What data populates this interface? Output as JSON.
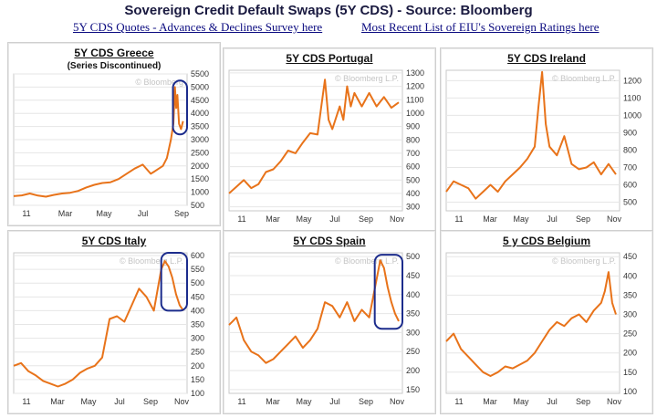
{
  "header": {
    "title": "Sovereign Credit Default Swaps (5Y CDS) - Source: Bloomberg",
    "link_quotes": "5Y CDS Quotes - Advances & Declines Survey here",
    "link_ratings": "Most Recent List of EIU's Sovereign Ratings here"
  },
  "colors": {
    "line": "#e8731a",
    "highlight": "#1c2c8c",
    "grid": "#e6e6e6"
  },
  "chart_data": [
    {
      "type": "line",
      "title": "5Y CDS Greece",
      "subtitle": "(Series Discontinued)",
      "watermark": "© Bloomberg",
      "xticks": [
        "11",
        "Mar",
        "May",
        "Jul",
        "Sep"
      ],
      "yticks": [
        500,
        1000,
        1500,
        2000,
        2500,
        3000,
        3500,
        4000,
        4500,
        5000,
        5500
      ],
      "ylim": [
        500,
        5500
      ],
      "xlim": [
        0,
        43
      ],
      "highlight": [
        39.5,
        43,
        3200,
        5250
      ],
      "series": [
        {
          "x": [
            0,
            2,
            4,
            6,
            8,
            10,
            12,
            14,
            16,
            18,
            20,
            22,
            24,
            26,
            28,
            30,
            32,
            34,
            35,
            36,
            37,
            38,
            39,
            39.6,
            40,
            40.3,
            40.6,
            41,
            41.5,
            42
          ],
          "y": [
            850,
            880,
            950,
            870,
            830,
            900,
            950,
            980,
            1050,
            1180,
            1280,
            1350,
            1380,
            1500,
            1700,
            1900,
            2050,
            1700,
            1800,
            1900,
            2000,
            2300,
            3000,
            3600,
            5000,
            4200,
            4700,
            3600,
            3400,
            3700
          ]
        }
      ]
    },
    {
      "type": "line",
      "title": "5Y CDS Portugal",
      "watermark": "© Bloomberg L.P.",
      "xticks": [
        "11",
        "Mar",
        "May",
        "Jul",
        "Sep",
        "Nov"
      ],
      "yticks": [
        300,
        400,
        500,
        600,
        700,
        800,
        900,
        1000,
        1100,
        1200,
        1300
      ],
      "ylim": [
        270,
        1320
      ],
      "xlim": [
        0,
        47
      ],
      "highlight": null,
      "series": [
        {
          "x": [
            0,
            2,
            4,
            6,
            8,
            10,
            12,
            14,
            16,
            18,
            20,
            22,
            24,
            25,
            26,
            27,
            28,
            30,
            31,
            32,
            33,
            34,
            36,
            38,
            40,
            42,
            44,
            46
          ],
          "y": [
            400,
            450,
            500,
            440,
            470,
            560,
            580,
            640,
            720,
            700,
            780,
            850,
            840,
            1050,
            1250,
            950,
            880,
            1050,
            950,
            1200,
            1050,
            1150,
            1050,
            1150,
            1050,
            1120,
            1040,
            1080
          ]
        }
      ]
    },
    {
      "type": "line",
      "title": "5Y CDS Ireland",
      "watermark": "© Bloomberg L.P.",
      "xticks": [
        "11",
        "Mar",
        "May",
        "Jul",
        "Sep",
        "Nov"
      ],
      "yticks": [
        500,
        600,
        700,
        800,
        900,
        1000,
        1100,
        1200
      ],
      "ylim": [
        450,
        1260
      ],
      "xlim": [
        0,
        47
      ],
      "highlight": null,
      "series": [
        {
          "x": [
            0,
            2,
            4,
            6,
            8,
            10,
            12,
            14,
            16,
            18,
            20,
            22,
            24,
            25,
            26,
            27,
            28,
            30,
            32,
            34,
            36,
            38,
            40,
            42,
            44,
            46
          ],
          "y": [
            560,
            620,
            600,
            580,
            520,
            560,
            600,
            560,
            620,
            660,
            700,
            750,
            820,
            1050,
            1250,
            950,
            820,
            770,
            880,
            720,
            690,
            700,
            730,
            660,
            720,
            660
          ]
        }
      ]
    },
    {
      "type": "line",
      "title": "5Y CDS Italy",
      "watermark": "© Bloomberg L.P.",
      "xticks": [
        "11",
        "Mar",
        "May",
        "Jul",
        "Sep",
        "Nov"
      ],
      "yticks": [
        100,
        150,
        200,
        250,
        300,
        350,
        400,
        450,
        500,
        550,
        600
      ],
      "ylim": [
        100,
        610
      ],
      "xlim": [
        0,
        47
      ],
      "highlight": [
        40,
        47,
        400,
        610
      ],
      "series": [
        {
          "x": [
            0,
            2,
            4,
            6,
            8,
            10,
            12,
            14,
            16,
            18,
            20,
            22,
            24,
            26,
            28,
            30,
            32,
            34,
            36,
            38,
            40,
            41,
            42,
            43,
            44,
            45,
            46
          ],
          "y": [
            200,
            210,
            180,
            165,
            145,
            135,
            125,
            135,
            150,
            175,
            190,
            200,
            230,
            370,
            380,
            360,
            420,
            480,
            450,
            400,
            550,
            580,
            560,
            520,
            460,
            420,
            400
          ]
        }
      ]
    },
    {
      "type": "line",
      "title": "5Y CDS Spain",
      "watermark": "© Bloomberg L.P.",
      "xticks": [
        "11",
        "Mar",
        "May",
        "Jul",
        "Sep",
        "Nov"
      ],
      "yticks": [
        150,
        200,
        250,
        300,
        350,
        400,
        450,
        500
      ],
      "ylim": [
        140,
        510
      ],
      "xlim": [
        0,
        47
      ],
      "highlight": [
        39.5,
        47,
        310,
        505
      ],
      "series": [
        {
          "x": [
            0,
            2,
            4,
            6,
            8,
            10,
            12,
            14,
            16,
            18,
            20,
            22,
            24,
            26,
            28,
            30,
            32,
            34,
            36,
            38,
            40,
            41,
            42,
            43,
            44,
            45,
            46
          ],
          "y": [
            320,
            340,
            280,
            250,
            240,
            220,
            230,
            250,
            270,
            290,
            260,
            280,
            310,
            380,
            370,
            340,
            380,
            330,
            360,
            340,
            440,
            490,
            470,
            420,
            380,
            350,
            330
          ]
        }
      ]
    },
    {
      "type": "line",
      "title": "5 y CDS Belgium",
      "watermark": "© Bloomberg L.P.",
      "xticks": [
        "11",
        "Mar",
        "May",
        "Jul",
        "Sep",
        "Nov"
      ],
      "yticks": [
        100,
        150,
        200,
        250,
        300,
        350,
        400,
        450
      ],
      "ylim": [
        95,
        460
      ],
      "xlim": [
        0,
        47
      ],
      "highlight": null,
      "series": [
        {
          "x": [
            0,
            2,
            4,
            6,
            8,
            10,
            12,
            14,
            16,
            18,
            20,
            22,
            24,
            26,
            28,
            30,
            32,
            34,
            36,
            38,
            40,
            42,
            43,
            44,
            45,
            46
          ],
          "y": [
            230,
            250,
            210,
            190,
            170,
            150,
            140,
            150,
            165,
            160,
            170,
            180,
            200,
            230,
            260,
            280,
            270,
            290,
            300,
            280,
            310,
            330,
            360,
            410,
            330,
            300
          ]
        }
      ]
    }
  ]
}
